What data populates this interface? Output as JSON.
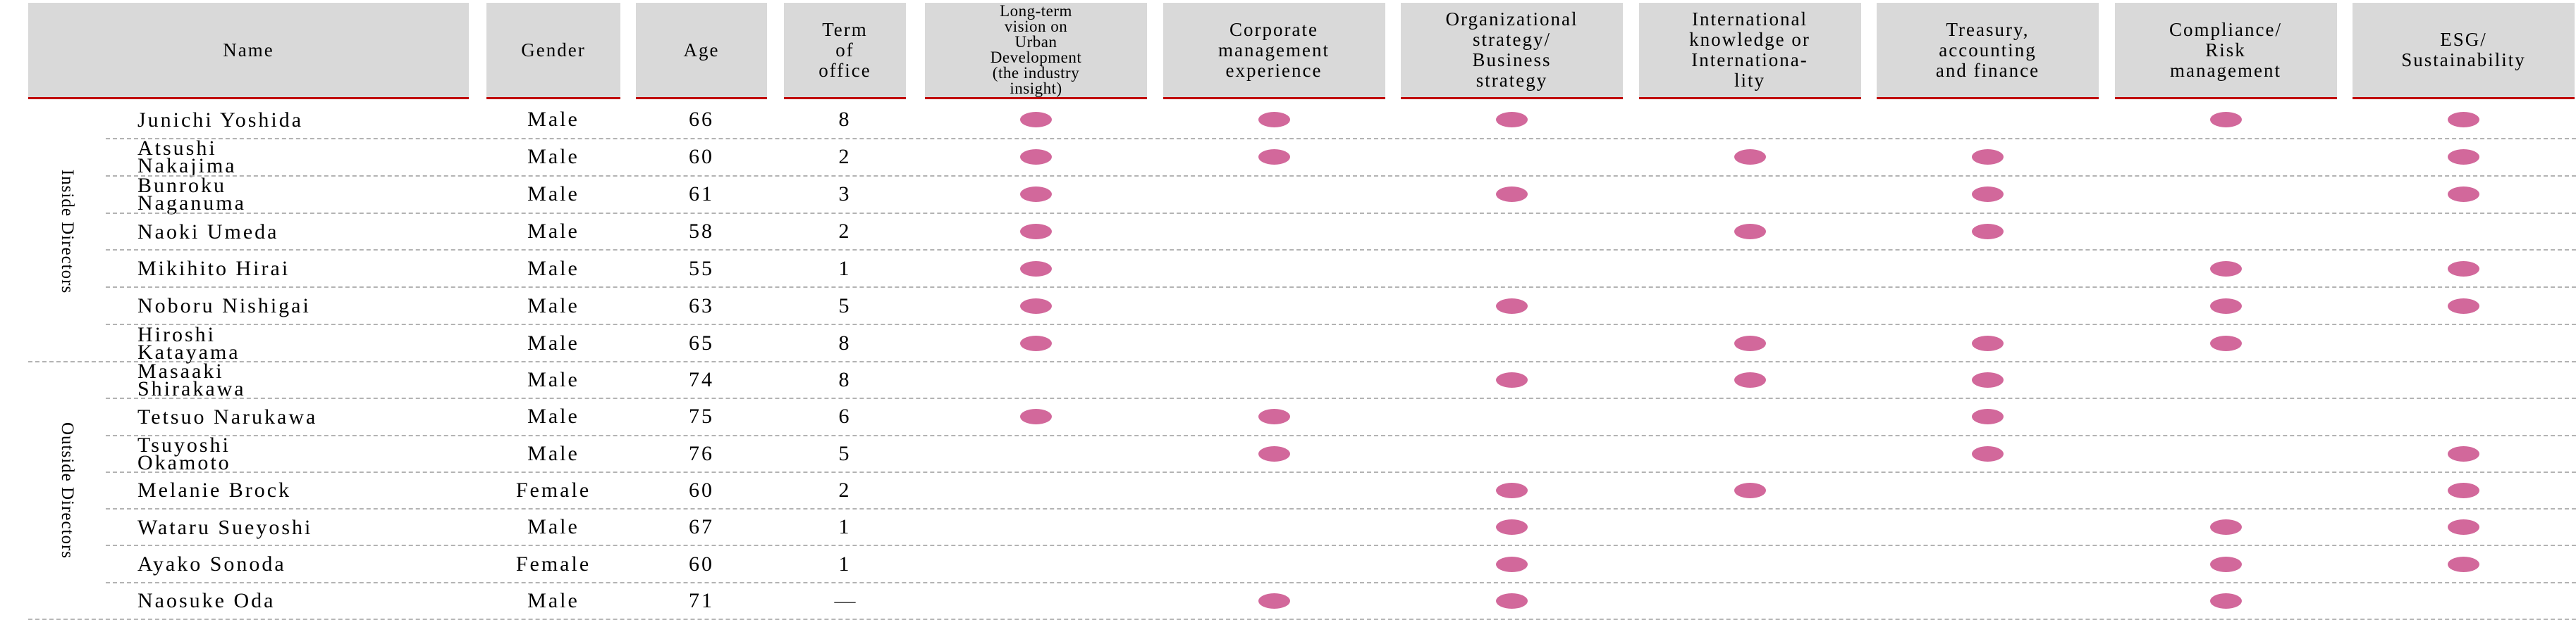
{
  "colors": {
    "header_bg": "#d9d9d9",
    "header_underline": "#c00000",
    "dot": "#d2689b",
    "row_separator": "#b3b3b3",
    "text": "#000000"
  },
  "table": {
    "header": {
      "name": "Name",
      "gender": "Gender",
      "age": "Age",
      "term_of_office": "Term\nof\noffice",
      "skills": [
        {
          "id": "long-term-vision",
          "label": "Long-term\nvision on\nUrban\nDevelopment\n(the industry\ninsight)"
        },
        {
          "id": "corporate-management",
          "label": "Corporate\nmanagement\nexperience"
        },
        {
          "id": "organizational-strategy",
          "label": "Organizational\nstrategy/\nBusiness\nstrategy"
        },
        {
          "id": "international-knowledge",
          "label": "International\nknowledge or\nInternationa-\nlity"
        },
        {
          "id": "treasury-accounting-finance",
          "label": "Treasury,\naccounting\nand finance"
        },
        {
          "id": "compliance-risk",
          "label": "Compliance/\nRisk\nmanagement"
        },
        {
          "id": "esg-sustainability",
          "label": "ESG/\nSustainability"
        }
      ]
    },
    "groups": [
      {
        "label": "Inside Directors",
        "rows": [
          {
            "name": "Junichi Yoshida",
            "gender": "Male",
            "age": "66",
            "term": "8",
            "skills": [
              1,
              1,
              1,
              0,
              0,
              1,
              1
            ]
          },
          {
            "name": "Atsushi\nNakajima",
            "gender": "Male",
            "age": "60",
            "term": "2",
            "skills": [
              1,
              1,
              0,
              1,
              1,
              0,
              1
            ]
          },
          {
            "name": "Bunroku\nNaganuma",
            "gender": "Male",
            "age": "61",
            "term": "3",
            "skills": [
              1,
              0,
              1,
              0,
              1,
              0,
              1
            ]
          },
          {
            "name": "Naoki Umeda",
            "gender": "Male",
            "age": "58",
            "term": "2",
            "skills": [
              1,
              0,
              0,
              1,
              1,
              0,
              0
            ]
          },
          {
            "name": "Mikihito Hirai",
            "gender": "Male",
            "age": "55",
            "term": "1",
            "skills": [
              1,
              0,
              0,
              0,
              0,
              1,
              1
            ]
          },
          {
            "name": "Noboru Nishigai",
            "gender": "Male",
            "age": "63",
            "term": "5",
            "skills": [
              1,
              0,
              1,
              0,
              0,
              1,
              1
            ]
          },
          {
            "name": "Hiroshi\nKatayama",
            "gender": "Male",
            "age": "65",
            "term": "8",
            "skills": [
              1,
              0,
              0,
              1,
              1,
              1,
              0
            ]
          }
        ]
      },
      {
        "label": "Outside Directors",
        "rows": [
          {
            "name": "Masaaki\nShirakawa",
            "gender": "Male",
            "age": "74",
            "term": "8",
            "skills": [
              0,
              0,
              1,
              1,
              1,
              0,
              0
            ]
          },
          {
            "name": "Tetsuo Narukawa",
            "gender": "Male",
            "age": "75",
            "term": "6",
            "skills": [
              1,
              1,
              0,
              0,
              1,
              0,
              0
            ]
          },
          {
            "name": "Tsuyoshi\nOkamoto",
            "gender": "Male",
            "age": "76",
            "term": "5",
            "skills": [
              0,
              1,
              0,
              0,
              1,
              0,
              1
            ]
          },
          {
            "name": "Melanie Brock",
            "gender": "Female",
            "age": "60",
            "term": "2",
            "skills": [
              0,
              0,
              1,
              1,
              0,
              0,
              1
            ]
          },
          {
            "name": "Wataru Sueyoshi",
            "gender": "Male",
            "age": "67",
            "term": "1",
            "skills": [
              0,
              0,
              1,
              0,
              0,
              1,
              1
            ]
          },
          {
            "name": "Ayako Sonoda",
            "gender": "Female",
            "age": "60",
            "term": "1",
            "skills": [
              0,
              0,
              1,
              0,
              0,
              1,
              1
            ]
          },
          {
            "name": "Naosuke Oda",
            "gender": "Male",
            "age": "71",
            "term": "—",
            "skills": [
              0,
              1,
              1,
              0,
              0,
              1,
              0
            ]
          }
        ]
      }
    ]
  }
}
